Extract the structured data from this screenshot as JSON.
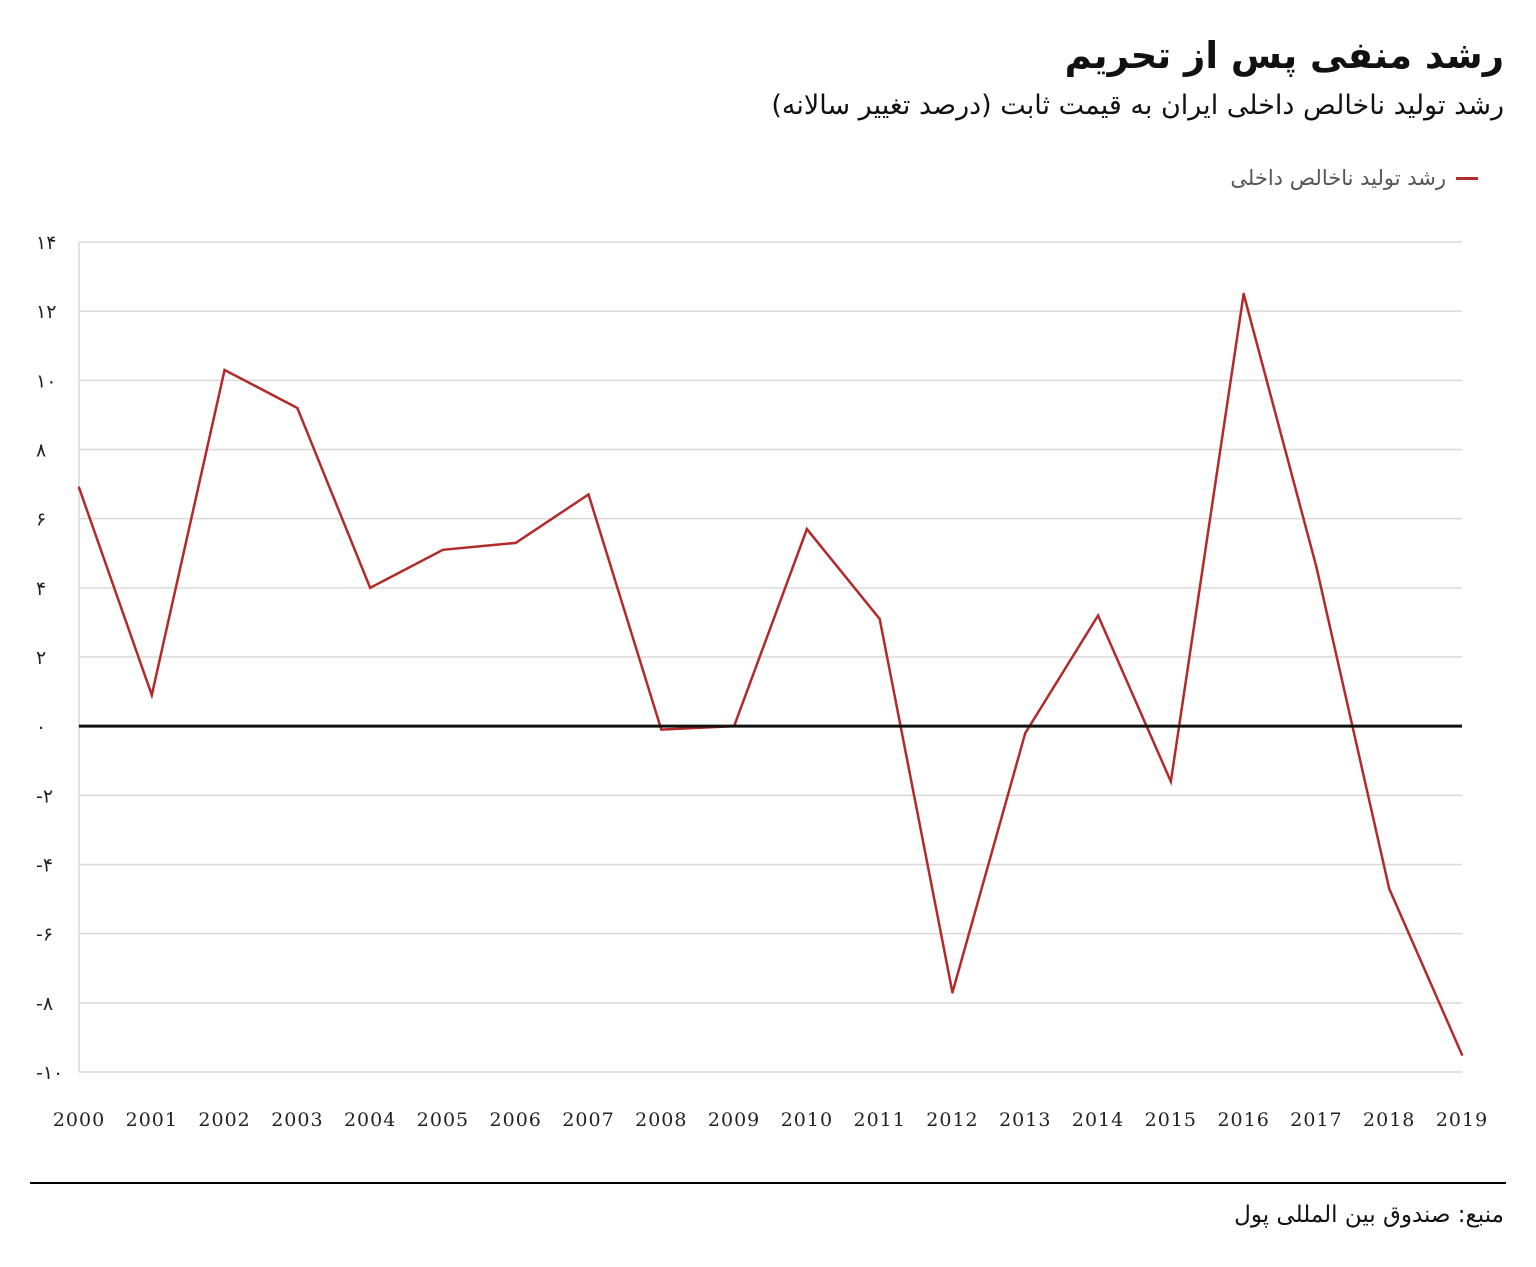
{
  "title": "رشد منفی پس از تحریم",
  "subtitle": "رشد تولید ناخالص داخلی ایران به قیمت ثابت (درصد تغییر سالانه)",
  "source": "منبع: صندوق بین المللی پول",
  "colors": {
    "series": "#b22a2a",
    "zero_line": "#111111",
    "grid": "#d9d9d9",
    "tick_text": "#222222"
  },
  "chart_data": {
    "type": "line",
    "title": "رشد منفی پس از تحریم",
    "subtitle": "رشد تولید ناخالص داخلی ایران به قیمت ثابت (درصد تغییر سالانه)",
    "ylim": [
      -10,
      14
    ],
    "yticks": [
      14,
      12,
      10,
      8,
      6,
      4,
      2,
      0,
      -2,
      -4,
      -6,
      -8,
      -10
    ],
    "ytick_labels": [
      "۱۴",
      "۱۲",
      "۱۰",
      "۸",
      "۶",
      "۴",
      "۲",
      "۰",
      "-۲",
      "-۴",
      "-۶",
      "-۸",
      "-۱۰"
    ],
    "grid": true,
    "legend_position": "top-right",
    "categories": [
      "2000",
      "2001",
      "2002",
      "2003",
      "2004",
      "2005",
      "2006",
      "2007",
      "2008",
      "2009",
      "2010",
      "2011",
      "2012",
      "2013",
      "2014",
      "2015",
      "2016",
      "2017",
      "2018",
      "2019"
    ],
    "series": [
      {
        "name": "رشد تولید ناخالص داخلی",
        "color": "#b22a2a",
        "values": [
          6.9,
          0.9,
          10.3,
          9.2,
          4.0,
          5.1,
          5.3,
          6.7,
          -0.1,
          0.0,
          5.7,
          3.1,
          -7.7,
          -0.2,
          3.2,
          -1.6,
          12.5,
          4.6,
          -4.7,
          -9.5
        ]
      }
    ]
  }
}
